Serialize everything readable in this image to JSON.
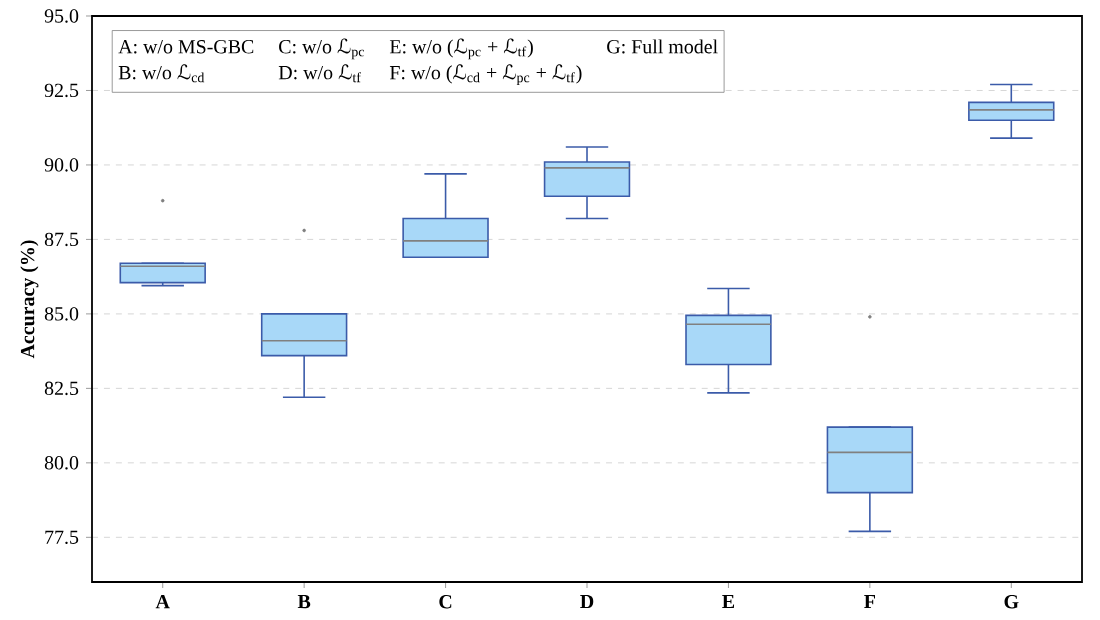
{
  "chart_data": {
    "type": "box",
    "ylabel": "Accuracy (%)",
    "categories": [
      "A",
      "B",
      "C",
      "D",
      "E",
      "F",
      "G"
    ],
    "color": "#a8d8f8",
    "boxes": [
      {
        "low": 85.95,
        "q1": 86.05,
        "median": 86.6,
        "q3": 86.7,
        "high": 86.7,
        "outliers": [
          88.8
        ]
      },
      {
        "low": 82.2,
        "q1": 83.6,
        "median": 84.1,
        "q3": 85.0,
        "high": 85.0,
        "outliers": [
          87.8
        ]
      },
      {
        "low": 86.9,
        "q1": 86.9,
        "median": 87.45,
        "q3": 88.2,
        "high": 89.7
      },
      {
        "low": 88.2,
        "q1": 88.95,
        "median": 89.9,
        "q3": 90.1,
        "high": 90.6
      },
      {
        "low": 82.35,
        "q1": 83.3,
        "median": 84.65,
        "q3": 84.95,
        "high": 85.85
      },
      {
        "low": 77.7,
        "q1": 79.0,
        "median": 80.35,
        "q3": 81.2,
        "high": 81.2,
        "outliers": [
          84.9
        ]
      },
      {
        "low": 90.9,
        "q1": 91.5,
        "median": 91.85,
        "q3": 92.1,
        "high": 92.7
      }
    ],
    "ylim": [
      76,
      95
    ],
    "yticks": [
      {
        "value": 77.5,
        "label": "77.5"
      },
      {
        "value": 80,
        "label": "80.0"
      },
      {
        "value": 82.5,
        "label": "82.5"
      },
      {
        "value": 85,
        "label": "85.0"
      },
      {
        "value": 87.5,
        "label": "87.5"
      },
      {
        "value": 90,
        "label": "90.0"
      },
      {
        "value": 92.5,
        "label": "92.5"
      },
      {
        "value": 95,
        "label": "95.0"
      }
    ],
    "grid": "y",
    "annotations": [
      "A: w/o MS-GBC",
      "B: w/o ℒ$_{cd}$",
      "C: w/o ℒ$_{pc}$",
      "D: w/o ℒ$_{tf}$",
      "E: w/o (ℒ$_{pc}$ + ℒ$_{tf}$)",
      "F: w/o (ℒ$_{cd}$ + ℒ$_{pc}$ + ℒ$_{tf}$)",
      "G: Full model"
    ]
  }
}
